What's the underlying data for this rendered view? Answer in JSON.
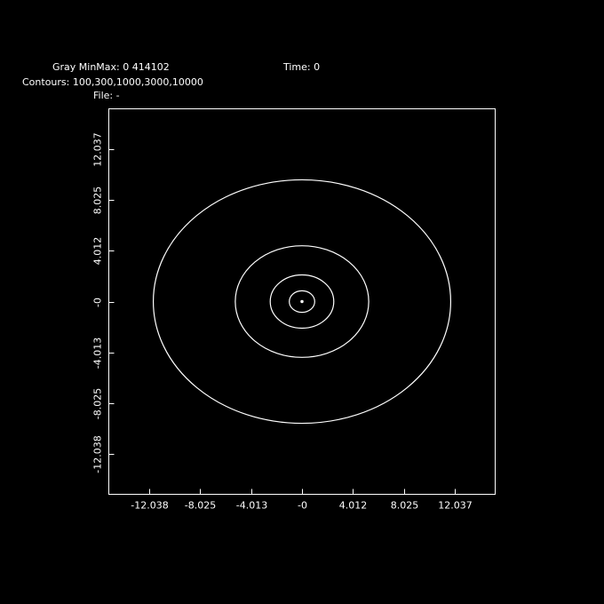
{
  "header": {
    "gray_minmax": "Gray MinMax: 0 414102",
    "time": "Time: 0",
    "contours": "Contours: 100,300,1000,3000,10000",
    "file": "File: -"
  },
  "chart_data": {
    "type": "contour",
    "xlim": [
      -15.2,
      15.2
    ],
    "ylim": [
      -15.2,
      15.2
    ],
    "x_ticks": [
      -12.038,
      -8.025,
      -4.013,
      0,
      4.012,
      8.025,
      12.037
    ],
    "x_tick_labels": [
      "-12.038",
      "-8.025",
      "-4.013",
      "-0",
      "4.012",
      "8.025",
      "12.037"
    ],
    "y_ticks": [
      12.037,
      8.025,
      4.012,
      0,
      -4.013,
      -8.025,
      -12.038
    ],
    "y_tick_labels": [
      "12.037",
      "8.025",
      "4.012",
      "-0",
      "-4.013",
      "-8.025",
      "-12.038"
    ],
    "levels": [
      100,
      300,
      1000,
      3000,
      10000
    ],
    "contours": [
      {
        "level": 100,
        "cx": 0,
        "cy": 0,
        "rx": 11.7,
        "ry": 9.6
      },
      {
        "level": 300,
        "cx": 0,
        "cy": 0,
        "rx": 5.25,
        "ry": 4.4
      },
      {
        "level": 1000,
        "cx": 0,
        "cy": 0,
        "rx": 2.5,
        "ry": 2.1
      },
      {
        "level": 3000,
        "cx": 0,
        "cy": 0,
        "rx": 1.0,
        "ry": 0.85
      },
      {
        "level": 10000,
        "cx": 0,
        "cy": 0,
        "rx": 0.08,
        "ry": 0.08
      }
    ],
    "colors": {
      "background": "#000000",
      "foreground": "#ffffff"
    }
  }
}
